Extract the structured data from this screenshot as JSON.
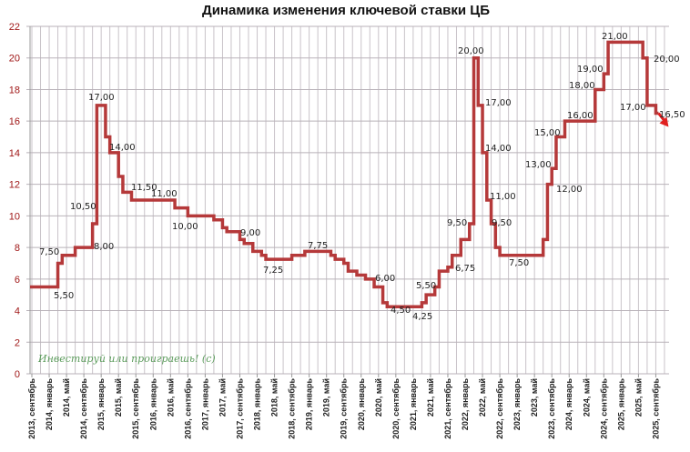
{
  "chart_data": {
    "type": "line",
    "title": "Динамика изменения ключевой ставки ЦБ",
    "xlabel": "",
    "ylabel": "",
    "ylim": [
      0,
      22
    ],
    "yticks": [
      0,
      2,
      4,
      6,
      8,
      10,
      12,
      14,
      16,
      18,
      20,
      22
    ],
    "grid": true,
    "step": true,
    "line_color": "#b5393a",
    "arrow_color": "#e02020",
    "tick_label_color": "#a01818",
    "xtick_labels": [
      "2013, сентябрь",
      "2014, январь",
      "2014, май",
      "2014, сентябрь",
      "2015, январь",
      "2015, май",
      "2015, сентябрь",
      "2016, январь",
      "2016, май",
      "2016, сентябрь",
      "2017, январь",
      "2017, май",
      "2017, сентябрь",
      "2018, январь",
      "2018, май",
      "2018, сентябрь",
      "2019, январь",
      "2019, май",
      "2019, сентябрь",
      "2020, январь",
      "2020, май",
      "2020, сентябрь",
      "2021, январь",
      "2021, май",
      "2021, сентябрь",
      "2022, январь",
      "2022, май",
      "2022, сентябрь",
      "2023, январь",
      "2023, май",
      "2023, сентябрь",
      "2024, январь",
      "2024, май",
      "2024, сентябрь",
      "2025, январь",
      "2025, май",
      "2025, сентябрь"
    ],
    "series": [
      {
        "points": [
          [
            "2013-09",
            5.5
          ],
          [
            "2014-03",
            7.0
          ],
          [
            "2014-04",
            7.5
          ],
          [
            "2014-07",
            8.0
          ],
          [
            "2014-11",
            9.5
          ],
          [
            "2014-12",
            17.0
          ],
          [
            "2015-02",
            15.0
          ],
          [
            "2015-03",
            14.0
          ],
          [
            "2015-05",
            12.5
          ],
          [
            "2015-06",
            11.5
          ],
          [
            "2015-08",
            11.0
          ],
          [
            "2016-06",
            10.5
          ],
          [
            "2016-09",
            10.0
          ],
          [
            "2017-03",
            9.75
          ],
          [
            "2017-05",
            9.25
          ],
          [
            "2017-06",
            9.0
          ],
          [
            "2017-09",
            8.5
          ],
          [
            "2017-10",
            8.25
          ],
          [
            "2017-12",
            7.75
          ],
          [
            "2018-02",
            7.5
          ],
          [
            "2018-03",
            7.25
          ],
          [
            "2018-09",
            7.5
          ],
          [
            "2018-12",
            7.75
          ],
          [
            "2019-06",
            7.5
          ],
          [
            "2019-07",
            7.25
          ],
          [
            "2019-09",
            7.0
          ],
          [
            "2019-10",
            6.5
          ],
          [
            "2019-12",
            6.25
          ],
          [
            "2020-02",
            6.0
          ],
          [
            "2020-04",
            5.5
          ],
          [
            "2020-06",
            4.5
          ],
          [
            "2020-07",
            4.25
          ],
          [
            "2021-03",
            4.5
          ],
          [
            "2021-04",
            5.0
          ],
          [
            "2021-06",
            5.5
          ],
          [
            "2021-07",
            6.5
          ],
          [
            "2021-09",
            6.75
          ],
          [
            "2021-10",
            7.5
          ],
          [
            "2021-12",
            8.5
          ],
          [
            "2022-02",
            9.5
          ],
          [
            "2022-03",
            20.0
          ],
          [
            "2022-04",
            17.0
          ],
          [
            "2022-05",
            14.0
          ],
          [
            "2022-06",
            11.0
          ],
          [
            "2022-07",
            9.5
          ],
          [
            "2022-08",
            8.0
          ],
          [
            "2022-09",
            7.5
          ],
          [
            "2023-07",
            8.5
          ],
          [
            "2023-08",
            12.0
          ],
          [
            "2023-09",
            13.0
          ],
          [
            "2023-10",
            15.0
          ],
          [
            "2023-12",
            16.0
          ],
          [
            "2024-07",
            18.0
          ],
          [
            "2024-09",
            19.0
          ],
          [
            "2024-10",
            21.0
          ],
          [
            "2025-06",
            20.0
          ],
          [
            "2025-07",
            17.0
          ],
          [
            "2025-09",
            16.5
          ]
        ]
      }
    ],
    "data_labels": [
      "7,50",
      "5,50",
      "10,50",
      "8,00",
      "17,00",
      "14,00",
      "11,50",
      "11,00",
      "10,00",
      "9,00",
      "7,25",
      "7,75",
      "6,00",
      "4,50",
      "5,50",
      "4,25",
      "6,75",
      "9,50",
      "20,00",
      "17,00",
      "14,00",
      "11,00",
      "9,50",
      "7,50",
      "13,00",
      "15,00",
      "12,00",
      "16,00",
      "18,00",
      "19,00",
      "21,00",
      "20,00",
      "17,00",
      "16,50"
    ],
    "annotation": "Инвестируй или проиграешь! (с)"
  }
}
